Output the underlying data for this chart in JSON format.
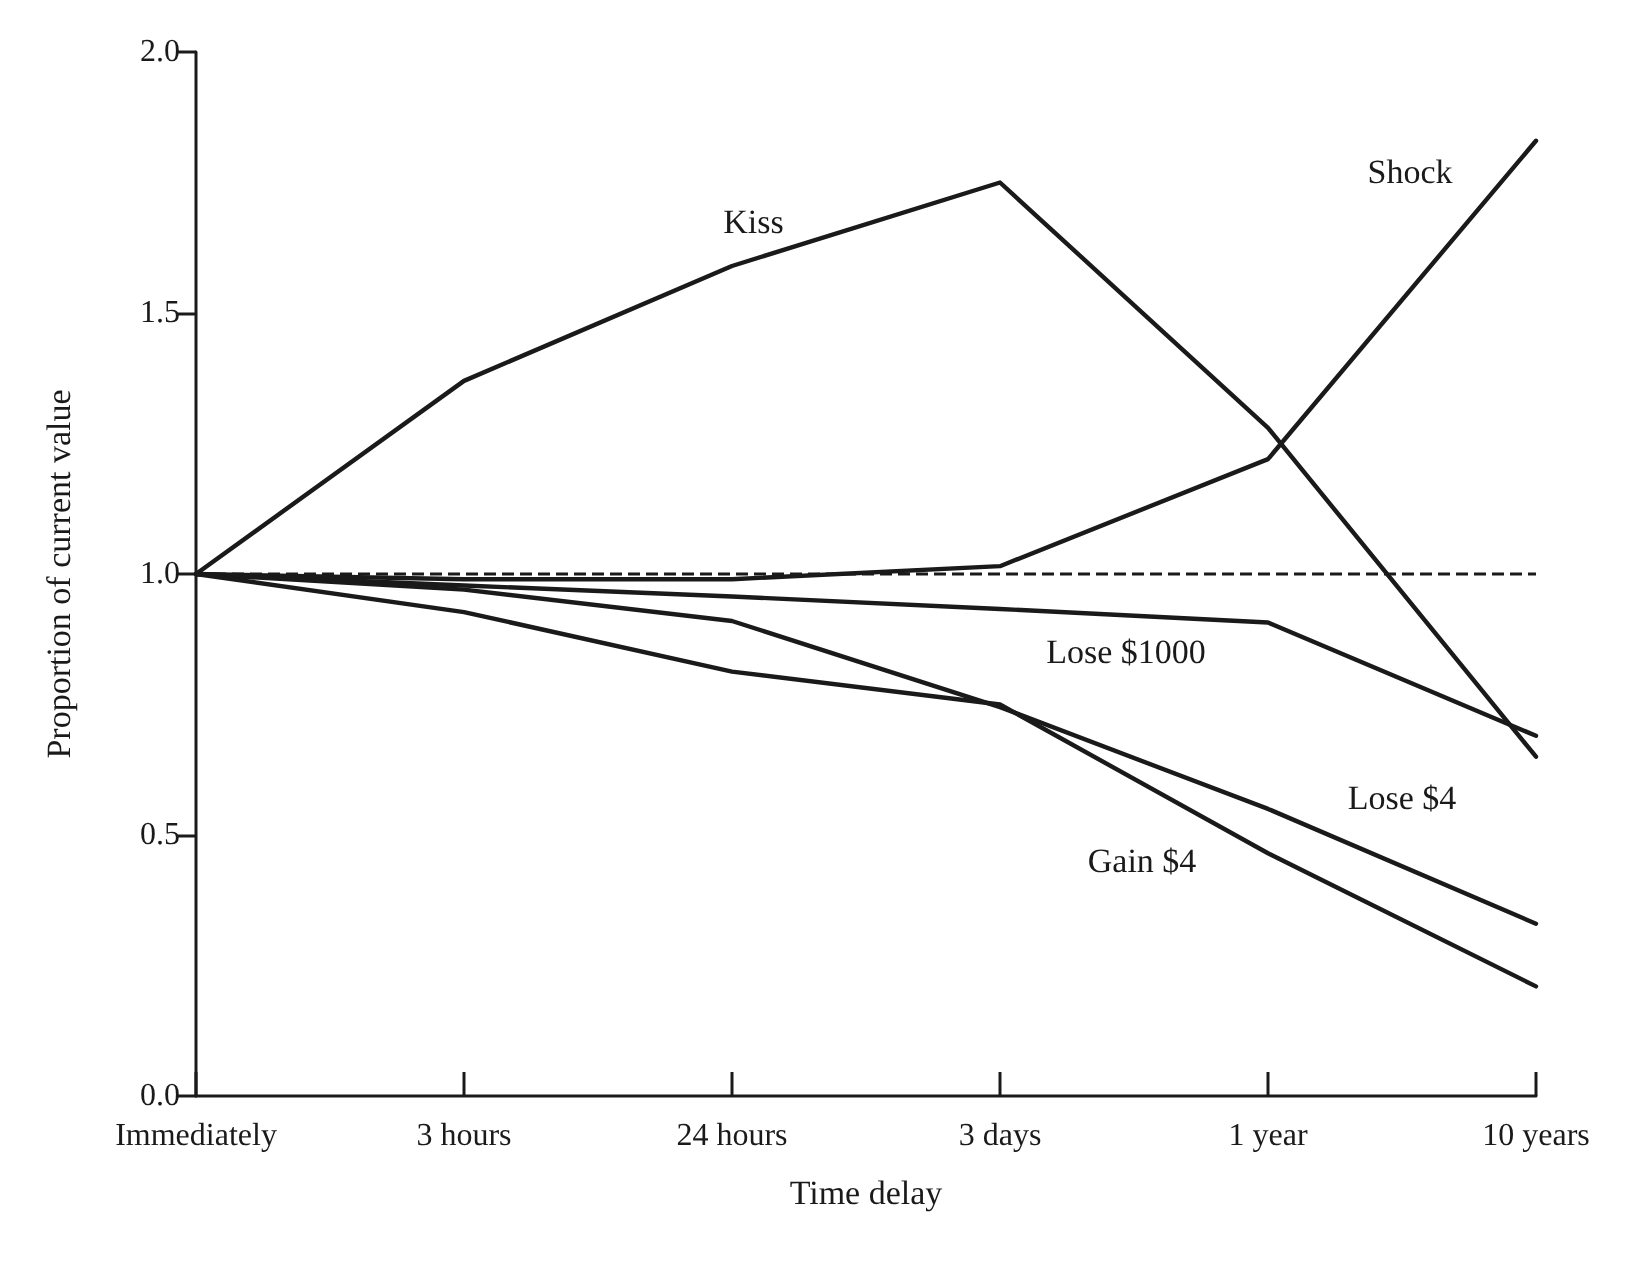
{
  "chart_data": {
    "type": "line",
    "xlabel": "Time delay",
    "ylabel": "Proportion of current value",
    "categories": [
      "Immediately",
      "3 hours",
      "24 hours",
      "3 days",
      "1 year",
      "10 years"
    ],
    "series": [
      {
        "color": "#1a1a1a",
        "values": [
          1.0,
          1.37,
          1.59,
          1.75,
          1.28,
          0.65
        ]
      },
      {
        "color": "#1a1a1a",
        "values": [
          1.0,
          0.99,
          0.99,
          1.015,
          1.22,
          1.83
        ]
      },
      {
        "color": "#1a1a1a",
        "values": [
          1.0,
          0.978,
          0.957,
          0.933,
          0.907,
          0.69
        ]
      },
      {
        "color": "#1a1a1a",
        "values": [
          1.0,
          0.97,
          0.91,
          0.745,
          0.55,
          0.33
        ]
      },
      {
        "color": "#1a1a1a",
        "values": [
          1.0,
          0.927,
          0.813,
          0.75,
          0.465,
          0.21
        ]
      }
    ],
    "annotations": [
      "Kiss",
      "Shock",
      "Lose $1000",
      "Lose $4",
      "Gain $4"
    ],
    "ref_lines": [
      {
        "axis": "y",
        "value": 1.0,
        "line_style": "dashed",
        "color": "#1a1a1a"
      }
    ],
    "ylim": [
      0,
      2
    ],
    "yticks": [
      {
        "value": 0,
        "label": "0.0"
      },
      0.5,
      {
        "value": 1,
        "label": "1.0"
      },
      1.5,
      {
        "value": 2,
        "label": "2.0"
      }
    ],
    "grid": false,
    "marker": "none",
    "line_style": "solid"
  }
}
